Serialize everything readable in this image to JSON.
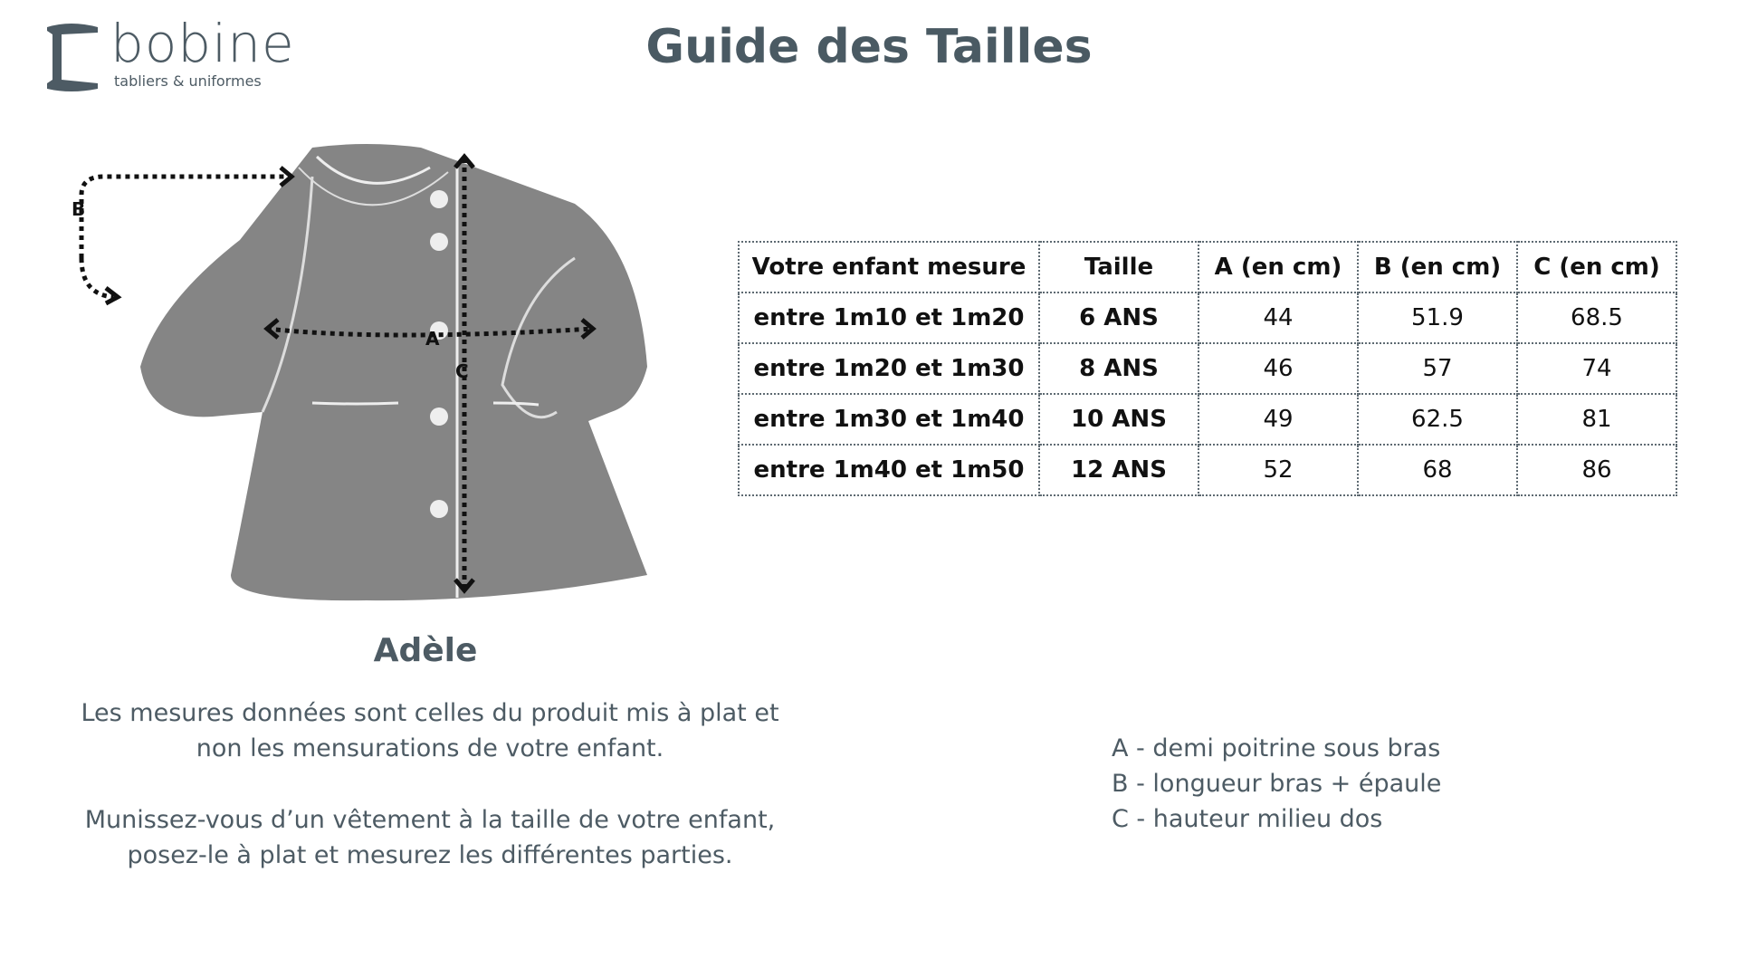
{
  "logo": {
    "name": "bobine",
    "tagline": "tabliers & uniformes"
  },
  "title": "Guide des Tailles",
  "figure": {
    "product_name": "Adèle",
    "labels": {
      "a": "A",
      "b": "B",
      "c": "C"
    },
    "garment_color": "#858585"
  },
  "notes": [
    [
      "Les mesures données sont celles du produit mis à plat et",
      "non les mensurations de votre enfant."
    ],
    [
      "Munissez-vous d’un vêtement à la taille de votre enfant,",
      "posez-le à plat et mesurez les différentes parties."
    ]
  ],
  "legend": [
    "A - demi poitrine sous bras",
    "B - longueur bras + épaule",
    "C - hauteur milieu dos"
  ],
  "table": {
    "headers": [
      "Votre enfant mesure",
      "Taille",
      "A (en cm)",
      "B (en cm)",
      "C (en cm)"
    ],
    "rows": [
      [
        "entre 1m10 et 1m20",
        "6 ANS",
        "44",
        "51.9",
        "68.5"
      ],
      [
        "entre 1m20 et 1m30",
        "8 ANS",
        "46",
        "57",
        "74"
      ],
      [
        "entre 1m30 et 1m40",
        "10 ANS",
        "49",
        "62.5",
        "81"
      ],
      [
        "entre 1m40 et 1m50",
        "12 ANS",
        "52",
        "68",
        "86"
      ]
    ]
  }
}
